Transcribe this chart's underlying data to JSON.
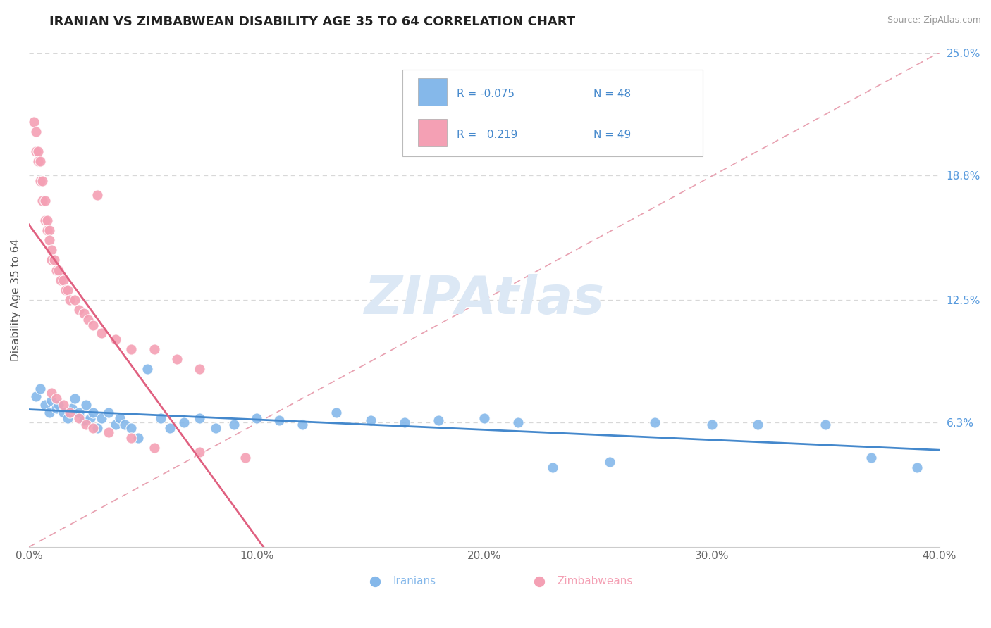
{
  "title": "IRANIAN VS ZIMBABWEAN DISABILITY AGE 35 TO 64 CORRELATION CHART",
  "source": "Source: ZipAtlas.com",
  "ylabel": "Disability Age 35 to 64",
  "xlim": [
    0.0,
    0.4
  ],
  "ylim": [
    0.0,
    0.25
  ],
  "xtick_labels": [
    "0.0%",
    "10.0%",
    "20.0%",
    "30.0%",
    "40.0%"
  ],
  "xtick_values": [
    0.0,
    0.1,
    0.2,
    0.3,
    0.4
  ],
  "ytick_labels_right": [
    "6.3%",
    "12.5%",
    "18.8%",
    "25.0%"
  ],
  "ytick_values_right": [
    0.063,
    0.125,
    0.188,
    0.25
  ],
  "iranian_R": -0.075,
  "iranian_N": 48,
  "zimbabwean_R": 0.219,
  "zimbabwean_N": 49,
  "iranian_color": "#85b8ea",
  "zimbabwean_color": "#f4a0b4",
  "iranian_trend_color": "#4488cc",
  "zimbabwean_trend_color": "#e06080",
  "ref_line_color": "#e8a0b0",
  "grid_color": "#d8d8d8",
  "background_color": "#ffffff",
  "watermark_text": "ZIPAtlas",
  "watermark_color": "#dce8f5",
  "legend_iranian_label": "Iranians",
  "legend_zimbabwean_label": "Zimbabweans",
  "iranians_x": [
    0.003,
    0.005,
    0.007,
    0.009,
    0.01,
    0.012,
    0.013,
    0.015,
    0.017,
    0.019,
    0.02,
    0.022,
    0.024,
    0.025,
    0.027,
    0.028,
    0.03,
    0.032,
    0.035,
    0.038,
    0.04,
    0.042,
    0.045,
    0.048,
    0.052,
    0.058,
    0.062,
    0.068,
    0.075,
    0.082,
    0.09,
    0.1,
    0.11,
    0.12,
    0.135,
    0.15,
    0.165,
    0.18,
    0.2,
    0.215,
    0.23,
    0.255,
    0.275,
    0.3,
    0.32,
    0.35,
    0.37,
    0.39
  ],
  "iranians_y": [
    0.076,
    0.08,
    0.072,
    0.068,
    0.074,
    0.07,
    0.072,
    0.068,
    0.065,
    0.07,
    0.075,
    0.068,
    0.064,
    0.072,
    0.065,
    0.068,
    0.06,
    0.065,
    0.068,
    0.062,
    0.065,
    0.062,
    0.06,
    0.055,
    0.09,
    0.065,
    0.06,
    0.063,
    0.065,
    0.06,
    0.062,
    0.065,
    0.064,
    0.062,
    0.068,
    0.064,
    0.063,
    0.064,
    0.065,
    0.063,
    0.04,
    0.043,
    0.063,
    0.062,
    0.062,
    0.062,
    0.045,
    0.04
  ],
  "zimbabweans_x": [
    0.002,
    0.003,
    0.003,
    0.004,
    0.004,
    0.005,
    0.005,
    0.006,
    0.006,
    0.007,
    0.007,
    0.008,
    0.008,
    0.009,
    0.009,
    0.01,
    0.01,
    0.011,
    0.012,
    0.013,
    0.014,
    0.015,
    0.016,
    0.017,
    0.018,
    0.02,
    0.022,
    0.024,
    0.026,
    0.028,
    0.032,
    0.038,
    0.045,
    0.055,
    0.065,
    0.075,
    0.01,
    0.012,
    0.015,
    0.018,
    0.022,
    0.025,
    0.028,
    0.035,
    0.045,
    0.055,
    0.075,
    0.095,
    0.03
  ],
  "zimbabweans_y": [
    0.215,
    0.21,
    0.2,
    0.2,
    0.195,
    0.195,
    0.185,
    0.185,
    0.175,
    0.175,
    0.165,
    0.165,
    0.16,
    0.16,
    0.155,
    0.15,
    0.145,
    0.145,
    0.14,
    0.14,
    0.135,
    0.135,
    0.13,
    0.13,
    0.125,
    0.125,
    0.12,
    0.118,
    0.115,
    0.112,
    0.108,
    0.105,
    0.1,
    0.1,
    0.095,
    0.09,
    0.078,
    0.075,
    0.072,
    0.068,
    0.065,
    0.062,
    0.06,
    0.058,
    0.055,
    0.05,
    0.048,
    0.045,
    0.178
  ]
}
